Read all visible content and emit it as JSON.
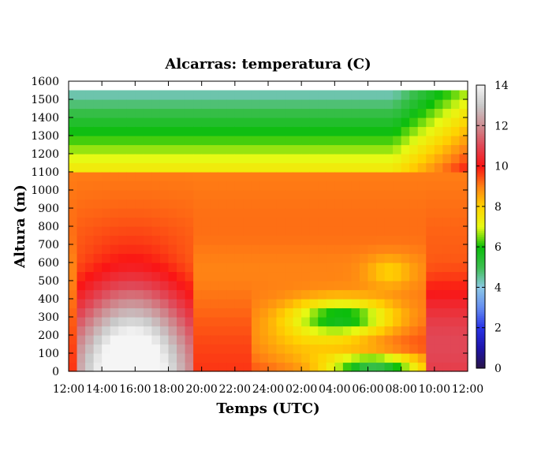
{
  "chart_data": {
    "type": "heatmap",
    "title": "Alcarras: temperatura (C)",
    "xlabel": "Temps (UTC)",
    "ylabel": "Altura (m)",
    "x_tick_labels": [
      "12:00",
      "14:00",
      "16:00",
      "18:00",
      "20:00",
      "22:00",
      "24:00",
      "02:00",
      "04:00",
      "06:00",
      "08:00",
      "10:00",
      "12:00"
    ],
    "y_ticks": [
      0,
      100,
      200,
      300,
      400,
      500,
      600,
      700,
      800,
      900,
      1000,
      1100,
      1200,
      1300,
      1400,
      1500,
      1600
    ],
    "ylim": [
      0,
      1600
    ],
    "x_range_hours": [
      0,
      24
    ],
    "data_top_height": 1550,
    "colorbar": {
      "ticks": [
        0,
        2,
        4,
        6,
        8,
        10,
        12,
        14
      ],
      "range": [
        0,
        14
      ]
    },
    "grid": false
  }
}
